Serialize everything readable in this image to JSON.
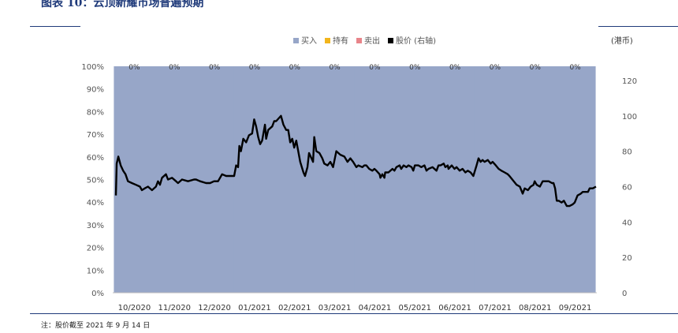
{
  "header": {
    "title": "图表 10：云顶新耀市场普遍预期"
  },
  "footer": {
    "note": "注：股价截至 2021 年 9 月 14 日"
  },
  "chart_data": {
    "type": "bar",
    "stacked": true,
    "y_unit_right": "(港币)",
    "categories": [
      "10/2020",
      "11/2020",
      "12/2020",
      "01/2021",
      "02/2021",
      "03/2021",
      "04/2021",
      "05/2021",
      "06/2021",
      "07/2021",
      "08/2021",
      "09/2021"
    ],
    "series": [
      {
        "name": "买入",
        "color": "#97a6c8",
        "values": [
          100,
          100,
          100,
          100,
          100,
          100,
          100,
          100,
          100,
          100,
          100,
          100
        ]
      },
      {
        "name": "持有",
        "color": "#f2b51c",
        "values": [
          0,
          0,
          0,
          0,
          0,
          0,
          0,
          0,
          0,
          0,
          0,
          0
        ]
      },
      {
        "name": "卖出",
        "color": "#e8848a",
        "values": [
          0,
          0,
          0,
          0,
          0,
          0,
          0,
          0,
          0,
          0,
          0,
          0
        ]
      }
    ],
    "bar_labels": [
      "0%",
      "0%",
      "0%",
      "0%",
      "0%",
      "0%",
      "0%",
      "0%",
      "0%",
      "0%",
      "0%",
      "0%"
    ],
    "line_series": {
      "name": "股价 (右轴)",
      "color": "#000000",
      "axis": "right",
      "points": [
        [
          0.0,
          55
        ],
        [
          0.02,
          73
        ],
        [
          0.06,
          77
        ],
        [
          0.12,
          72
        ],
        [
          0.18,
          69
        ],
        [
          0.24,
          67
        ],
        [
          0.3,
          63
        ],
        [
          0.4,
          62
        ],
        [
          0.5,
          61
        ],
        [
          0.6,
          60
        ],
        [
          0.65,
          58
        ],
        [
          0.72,
          59
        ],
        [
          0.8,
          60
        ],
        [
          0.9,
          58
        ],
        [
          1.0,
          60
        ],
        [
          1.05,
          63
        ],
        [
          1.1,
          61
        ],
        [
          1.15,
          65
        ],
        [
          1.25,
          67
        ],
        [
          1.3,
          64
        ],
        [
          1.4,
          65
        ],
        [
          1.5,
          63
        ],
        [
          1.55,
          62
        ],
        [
          1.65,
          64
        ],
        [
          1.8,
          63
        ],
        [
          1.95,
          64
        ],
        [
          2.0,
          64
        ],
        [
          2.1,
          63
        ],
        [
          2.25,
          62
        ],
        [
          2.35,
          62
        ],
        [
          2.45,
          63
        ],
        [
          2.55,
          63
        ],
        [
          2.65,
          67
        ],
        [
          2.75,
          66
        ],
        [
          2.85,
          66
        ],
        [
          2.95,
          66
        ],
        [
          3.0,
          72
        ],
        [
          3.05,
          71
        ],
        [
          3.08,
          83
        ],
        [
          3.12,
          80
        ],
        [
          3.18,
          87
        ],
        [
          3.25,
          85
        ],
        [
          3.32,
          89
        ],
        [
          3.4,
          90
        ],
        [
          3.45,
          98
        ],
        [
          3.5,
          94
        ],
        [
          3.55,
          88
        ],
        [
          3.6,
          84
        ],
        [
          3.65,
          86
        ],
        [
          3.72,
          95
        ],
        [
          3.75,
          87
        ],
        [
          3.8,
          92
        ],
        [
          3.9,
          94
        ],
        [
          3.95,
          97
        ],
        [
          4.0,
          97
        ],
        [
          4.08,
          99
        ],
        [
          4.12,
          100
        ],
        [
          4.18,
          95
        ],
        [
          4.25,
          92
        ],
        [
          4.3,
          92
        ],
        [
          4.35,
          85
        ],
        [
          4.4,
          87
        ],
        [
          4.45,
          82
        ],
        [
          4.5,
          86
        ],
        [
          4.55,
          80
        ],
        [
          4.6,
          74
        ],
        [
          4.68,
          68
        ],
        [
          4.72,
          66
        ],
        [
          4.78,
          71
        ],
        [
          4.82,
          79
        ],
        [
          4.88,
          76
        ],
        [
          4.92,
          74
        ],
        [
          4.95,
          88
        ],
        [
          5.0,
          80
        ],
        [
          5.08,
          79
        ],
        [
          5.15,
          76
        ],
        [
          5.2,
          73
        ],
        [
          5.28,
          72
        ],
        [
          5.35,
          74
        ],
        [
          5.42,
          71
        ],
        [
          5.5,
          80
        ],
        [
          5.6,
          78
        ],
        [
          5.7,
          77
        ],
        [
          5.78,
          74
        ],
        [
          5.85,
          76
        ],
        [
          5.92,
          74
        ],
        [
          6.0,
          71
        ],
        [
          6.05,
          72
        ],
        [
          6.15,
          71
        ],
        [
          6.2,
          72
        ],
        [
          6.25,
          72
        ],
        [
          6.32,
          70
        ],
        [
          6.4,
          69
        ],
        [
          6.45,
          70
        ],
        [
          6.5,
          69
        ],
        [
          6.58,
          67
        ],
        [
          6.6,
          65
        ],
        [
          6.65,
          67
        ],
        [
          6.7,
          65
        ],
        [
          6.72,
          68
        ],
        [
          6.8,
          68
        ],
        [
          6.9,
          70
        ],
        [
          6.95,
          69
        ],
        [
          7.0,
          71
        ],
        [
          7.08,
          72
        ],
        [
          7.12,
          70
        ],
        [
          7.18,
          72
        ],
        [
          7.25,
          71
        ],
        [
          7.3,
          72
        ],
        [
          7.38,
          71
        ],
        [
          7.42,
          69
        ],
        [
          7.46,
          72
        ],
        [
          7.55,
          72
        ],
        [
          7.62,
          71
        ],
        [
          7.7,
          72
        ],
        [
          7.75,
          69
        ],
        [
          7.8,
          70
        ],
        [
          7.9,
          71
        ],
        [
          8.0,
          69
        ],
        [
          8.05,
          72
        ],
        [
          8.1,
          72
        ],
        [
          8.18,
          73
        ],
        [
          8.22,
          71
        ],
        [
          8.28,
          72
        ],
        [
          8.3,
          70
        ],
        [
          8.38,
          72
        ],
        [
          8.45,
          70
        ],
        [
          8.5,
          71
        ],
        [
          8.58,
          69
        ],
        [
          8.65,
          70
        ],
        [
          8.72,
          68
        ],
        [
          8.78,
          69
        ],
        [
          8.85,
          68
        ],
        [
          8.92,
          66
        ],
        [
          9.0,
          72
        ],
        [
          9.05,
          76
        ],
        [
          9.1,
          74
        ],
        [
          9.15,
          75
        ],
        [
          9.2,
          74
        ],
        [
          9.28,
          75
        ],
        [
          9.35,
          73
        ],
        [
          9.4,
          74
        ],
        [
          9.48,
          72
        ],
        [
          9.55,
          70
        ],
        [
          9.62,
          69
        ],
        [
          9.7,
          68
        ],
        [
          9.78,
          67
        ],
        [
          9.82,
          66
        ],
        [
          10.0,
          61
        ],
        [
          10.08,
          60
        ],
        [
          10.15,
          56
        ],
        [
          10.2,
          59
        ],
        [
          10.28,
          58
        ],
        [
          10.35,
          60
        ],
        [
          10.42,
          61
        ],
        [
          10.45,
          63
        ],
        [
          10.5,
          61
        ],
        [
          10.58,
          60
        ],
        [
          10.65,
          63
        ],
        [
          10.72,
          63
        ],
        [
          10.8,
          63
        ],
        [
          10.88,
          62
        ],
        [
          10.92,
          62
        ],
        [
          10.96,
          59
        ],
        [
          11.0,
          52
        ],
        [
          11.05,
          52
        ],
        [
          11.12,
          51
        ],
        [
          11.18,
          52
        ],
        [
          11.25,
          49
        ],
        [
          11.32,
          49
        ],
        [
          11.4,
          50
        ],
        [
          11.45,
          51
        ],
        [
          11.52,
          55
        ],
        [
          11.6,
          56
        ],
        [
          11.65,
          57
        ],
        [
          11.72,
          57
        ],
        [
          11.78,
          57
        ],
        [
          11.82,
          59
        ],
        [
          11.9,
          59
        ],
        [
          11.98,
          60
        ]
      ]
    },
    "y_left": {
      "min": 0,
      "max": 100,
      "ticks": [
        "0%",
        "10%",
        "20%",
        "30%",
        "40%",
        "50%",
        "60%",
        "70%",
        "80%",
        "90%",
        "100%"
      ]
    },
    "y_right": {
      "min": 0,
      "max": 128,
      "ticks": [
        "0",
        "20",
        "40",
        "60",
        "80",
        "100",
        "120"
      ]
    },
    "legend": {
      "position": "top-center",
      "items": [
        {
          "label": "买入",
          "color": "#97a6c8"
        },
        {
          "label": "持有",
          "color": "#f2b51c"
        },
        {
          "label": "卖出",
          "color": "#e8848a"
        },
        {
          "label": "股价 (右轴)",
          "color": "#000000"
        }
      ]
    }
  }
}
